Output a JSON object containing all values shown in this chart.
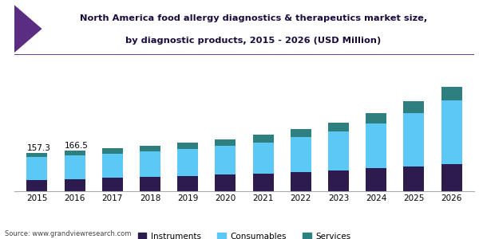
{
  "years": [
    2015,
    2016,
    2017,
    2018,
    2019,
    2020,
    2021,
    2022,
    2023,
    2024,
    2025,
    2026
  ],
  "instruments": [
    45,
    50,
    54,
    58,
    63,
    68,
    73,
    78,
    85,
    93,
    102,
    112
  ],
  "consumables": [
    95,
    98,
    99,
    104,
    109,
    117,
    127,
    142,
    158,
    185,
    218,
    258
  ],
  "services": [
    17.3,
    18.5,
    22,
    24,
    26,
    27,
    30,
    33,
    38,
    42,
    47,
    57
  ],
  "annotations": {
    "2015": "157.3",
    "2016": "166.5"
  },
  "title_line1": "North America food allergy diagnostics & therapeutics market size,",
  "title_line2": "by diagnostic products, 2015 - 2026 (USD Million)",
  "instruments_color": "#2d1b4e",
  "consumables_color": "#5bc8f5",
  "services_color": "#2e7f7f",
  "background_color": "#ffffff",
  "header_bg": "#f0f0f5",
  "header_line_color": "#5a2d82",
  "title_color": "#1a0a3c",
  "source_text": "Source: www.grandviewresearch.com",
  "legend_labels": [
    "Instruments",
    "Consumables",
    "Services"
  ],
  "bar_width": 0.55
}
